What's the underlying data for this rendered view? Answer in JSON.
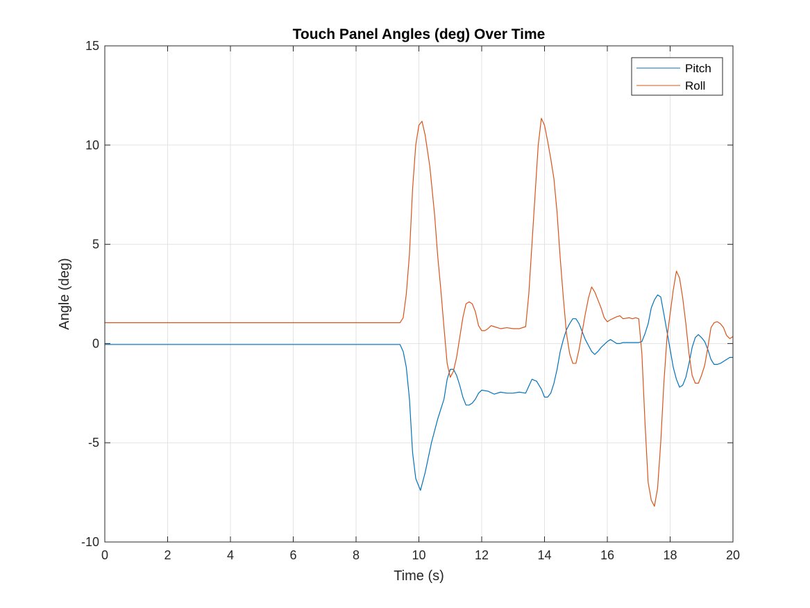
{
  "chart_data": {
    "type": "line",
    "title": "Touch Panel Angles (deg) Over Time",
    "xlabel": "Time (s)",
    "ylabel": "Angle (deg)",
    "xlim": [
      0,
      20
    ],
    "ylim": [
      -10,
      15
    ],
    "xticks": [
      0,
      2,
      4,
      6,
      8,
      10,
      12,
      14,
      16,
      18,
      20
    ],
    "yticks": [
      -10,
      -5,
      0,
      5,
      10,
      15
    ],
    "xtick_labels": [
      "0",
      "2",
      "4",
      "6",
      "8",
      "10",
      "12",
      "14",
      "16",
      "18",
      "20"
    ],
    "ytick_labels": [
      "-10",
      "-5",
      "0",
      "5",
      "10",
      "15"
    ],
    "grid": true,
    "legend_position": "top-right",
    "series": [
      {
        "name": "Pitch",
        "color": "#0072BD",
        "points": [
          [
            0,
            -0.05
          ],
          [
            9.4,
            -0.05
          ],
          [
            9.5,
            -0.4
          ],
          [
            9.6,
            -1.2
          ],
          [
            9.7,
            -2.8
          ],
          [
            9.8,
            -5.5
          ],
          [
            9.9,
            -6.8
          ],
          [
            10.05,
            -7.4
          ],
          [
            10.2,
            -6.5
          ],
          [
            10.4,
            -5.0
          ],
          [
            10.6,
            -3.8
          ],
          [
            10.8,
            -2.8
          ],
          [
            10.9,
            -1.8
          ],
          [
            11.0,
            -1.3
          ],
          [
            11.1,
            -1.3
          ],
          [
            11.2,
            -1.6
          ],
          [
            11.3,
            -2.1
          ],
          [
            11.4,
            -2.7
          ],
          [
            11.5,
            -3.1
          ],
          [
            11.6,
            -3.1
          ],
          [
            11.7,
            -3.0
          ],
          [
            11.8,
            -2.8
          ],
          [
            11.9,
            -2.5
          ],
          [
            12.0,
            -2.35
          ],
          [
            12.2,
            -2.4
          ],
          [
            12.4,
            -2.55
          ],
          [
            12.6,
            -2.45
          ],
          [
            12.8,
            -2.5
          ],
          [
            13.0,
            -2.5
          ],
          [
            13.2,
            -2.45
          ],
          [
            13.4,
            -2.5
          ],
          [
            13.6,
            -1.8
          ],
          [
            13.75,
            -1.9
          ],
          [
            13.9,
            -2.3
          ],
          [
            14.0,
            -2.7
          ],
          [
            14.1,
            -2.7
          ],
          [
            14.2,
            -2.5
          ],
          [
            14.3,
            -2.0
          ],
          [
            14.4,
            -1.3
          ],
          [
            14.5,
            -0.4
          ],
          [
            14.6,
            0.2
          ],
          [
            14.7,
            0.7
          ],
          [
            14.8,
            1.0
          ],
          [
            14.9,
            1.25
          ],
          [
            15.0,
            1.25
          ],
          [
            15.1,
            1.0
          ],
          [
            15.2,
            0.6
          ],
          [
            15.3,
            0.2
          ],
          [
            15.4,
            -0.1
          ],
          [
            15.5,
            -0.4
          ],
          [
            15.6,
            -0.55
          ],
          [
            15.7,
            -0.4
          ],
          [
            15.8,
            -0.2
          ],
          [
            16.0,
            0.1
          ],
          [
            16.1,
            0.2
          ],
          [
            16.2,
            0.1
          ],
          [
            16.3,
            0.0
          ],
          [
            16.4,
            0.0
          ],
          [
            16.5,
            0.05
          ],
          [
            17.0,
            0.05
          ],
          [
            17.1,
            0.1
          ],
          [
            17.2,
            0.5
          ],
          [
            17.3,
            1.0
          ],
          [
            17.4,
            1.8
          ],
          [
            17.5,
            2.2
          ],
          [
            17.6,
            2.45
          ],
          [
            17.7,
            2.35
          ],
          [
            17.8,
            1.5
          ],
          [
            17.9,
            0.6
          ],
          [
            18.0,
            -0.3
          ],
          [
            18.1,
            -1.2
          ],
          [
            18.2,
            -1.8
          ],
          [
            18.3,
            -2.2
          ],
          [
            18.4,
            -2.1
          ],
          [
            18.5,
            -1.7
          ],
          [
            18.6,
            -1.0
          ],
          [
            18.7,
            -0.2
          ],
          [
            18.8,
            0.3
          ],
          [
            18.9,
            0.45
          ],
          [
            19.0,
            0.3
          ],
          [
            19.1,
            0.1
          ],
          [
            19.2,
            -0.3
          ],
          [
            19.3,
            -0.8
          ],
          [
            19.4,
            -1.05
          ],
          [
            19.5,
            -1.05
          ],
          [
            19.6,
            -1.0
          ],
          [
            19.8,
            -0.8
          ],
          [
            19.9,
            -0.7
          ],
          [
            20.0,
            -0.7
          ]
        ]
      },
      {
        "name": "Roll",
        "color": "#D95319",
        "points": [
          [
            0,
            1.05
          ],
          [
            9.4,
            1.05
          ],
          [
            9.5,
            1.3
          ],
          [
            9.6,
            2.5
          ],
          [
            9.7,
            4.5
          ],
          [
            9.8,
            7.8
          ],
          [
            9.9,
            10.0
          ],
          [
            10.0,
            11.0
          ],
          [
            10.1,
            11.2
          ],
          [
            10.2,
            10.5
          ],
          [
            10.35,
            8.9
          ],
          [
            10.5,
            6.5
          ],
          [
            10.6,
            4.4
          ],
          [
            10.7,
            2.7
          ],
          [
            10.8,
            0.8
          ],
          [
            10.9,
            -1.0
          ],
          [
            11.0,
            -1.7
          ],
          [
            11.1,
            -1.4
          ],
          [
            11.2,
            -0.7
          ],
          [
            11.3,
            0.3
          ],
          [
            11.4,
            1.3
          ],
          [
            11.5,
            2.0
          ],
          [
            11.6,
            2.1
          ],
          [
            11.7,
            2.0
          ],
          [
            11.8,
            1.6
          ],
          [
            11.9,
            0.9
          ],
          [
            12.0,
            0.65
          ],
          [
            12.1,
            0.65
          ],
          [
            12.2,
            0.75
          ],
          [
            12.3,
            0.9
          ],
          [
            12.4,
            0.85
          ],
          [
            12.6,
            0.75
          ],
          [
            12.8,
            0.8
          ],
          [
            13.0,
            0.75
          ],
          [
            13.2,
            0.75
          ],
          [
            13.4,
            0.85
          ],
          [
            13.5,
            2.5
          ],
          [
            13.6,
            5.0
          ],
          [
            13.7,
            7.5
          ],
          [
            13.8,
            10.0
          ],
          [
            13.9,
            11.35
          ],
          [
            14.0,
            11.0
          ],
          [
            14.1,
            10.2
          ],
          [
            14.2,
            9.3
          ],
          [
            14.3,
            8.3
          ],
          [
            14.4,
            6.6
          ],
          [
            14.5,
            4.3
          ],
          [
            14.6,
            2.3
          ],
          [
            14.7,
            0.5
          ],
          [
            14.8,
            -0.5
          ],
          [
            14.9,
            -1.0
          ],
          [
            15.0,
            -1.0
          ],
          [
            15.1,
            -0.3
          ],
          [
            15.2,
            0.6
          ],
          [
            15.3,
            1.5
          ],
          [
            15.4,
            2.3
          ],
          [
            15.5,
            2.85
          ],
          [
            15.6,
            2.6
          ],
          [
            15.7,
            2.2
          ],
          [
            15.8,
            1.8
          ],
          [
            15.9,
            1.3
          ],
          [
            16.0,
            1.1
          ],
          [
            16.1,
            1.2
          ],
          [
            16.3,
            1.35
          ],
          [
            16.4,
            1.4
          ],
          [
            16.5,
            1.25
          ],
          [
            16.7,
            1.3
          ],
          [
            16.8,
            1.25
          ],
          [
            16.9,
            1.3
          ],
          [
            17.0,
            1.25
          ],
          [
            17.1,
            -0.5
          ],
          [
            17.2,
            -4.0
          ],
          [
            17.3,
            -7.0
          ],
          [
            17.4,
            -7.9
          ],
          [
            17.5,
            -8.2
          ],
          [
            17.6,
            -7.3
          ],
          [
            17.7,
            -5.0
          ],
          [
            17.8,
            -2.0
          ],
          [
            17.9,
            0.3
          ],
          [
            18.0,
            1.5
          ],
          [
            18.1,
            2.7
          ],
          [
            18.2,
            3.65
          ],
          [
            18.3,
            3.3
          ],
          [
            18.4,
            2.3
          ],
          [
            18.5,
            1.0
          ],
          [
            18.6,
            -0.5
          ],
          [
            18.7,
            -1.6
          ],
          [
            18.8,
            -2.0
          ],
          [
            18.9,
            -2.0
          ],
          [
            19.0,
            -1.6
          ],
          [
            19.1,
            -1.1
          ],
          [
            19.2,
            -0.2
          ],
          [
            19.3,
            0.8
          ],
          [
            19.4,
            1.05
          ],
          [
            19.5,
            1.1
          ],
          [
            19.6,
            1.0
          ],
          [
            19.7,
            0.8
          ],
          [
            19.8,
            0.4
          ],
          [
            19.9,
            0.25
          ],
          [
            20.0,
            0.35
          ]
        ]
      }
    ]
  }
}
